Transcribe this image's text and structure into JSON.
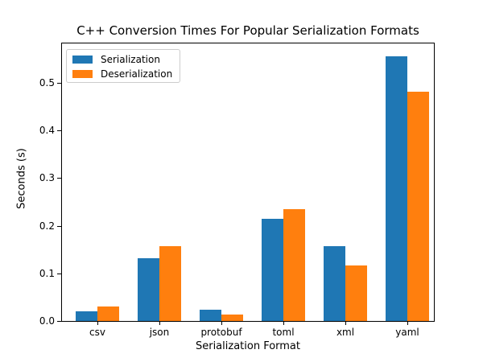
{
  "chart_data": {
    "type": "bar",
    "title": "C++ Conversion Times For Popular Serialization Formats",
    "xlabel": "Serialization Format",
    "ylabel": "Seconds (s)",
    "categories": [
      "csv",
      "json",
      "protobuf",
      "toml",
      "xml",
      "yaml"
    ],
    "series": [
      {
        "name": "Serialization",
        "color": "#1f77b4",
        "values": [
          0.021,
          0.131,
          0.024,
          0.215,
          0.157,
          0.555
        ]
      },
      {
        "name": "Deserialization",
        "color": "#ff7f0e",
        "values": [
          0.03,
          0.157,
          0.013,
          0.235,
          0.116,
          0.481
        ]
      }
    ],
    "ylim": [
      0,
      0.583
    ],
    "yticks": [
      0.0,
      0.1,
      0.2,
      0.3,
      0.4,
      0.5
    ],
    "ytick_labels": [
      "0.0",
      "0.1",
      "0.2",
      "0.3",
      "0.4",
      "0.5"
    ],
    "legend_position": "upper left",
    "grid": false
  }
}
